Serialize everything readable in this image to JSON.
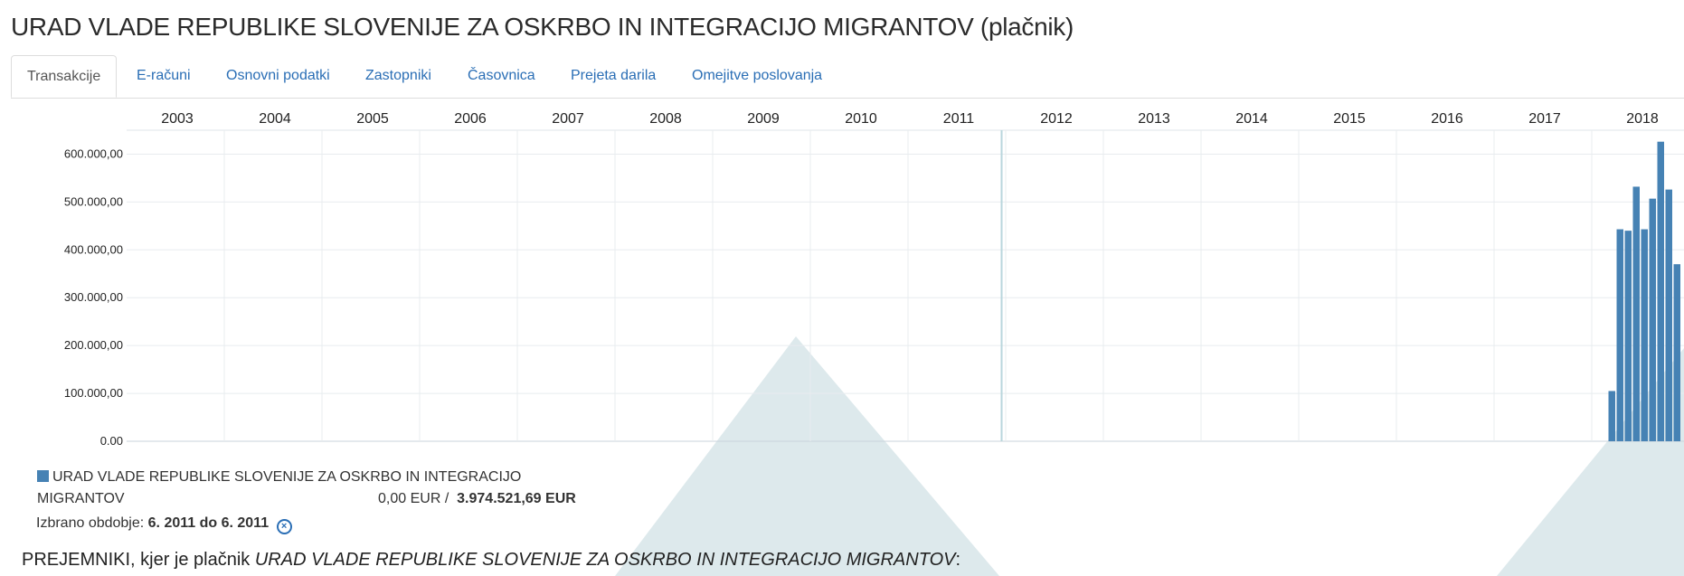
{
  "page": {
    "title": "URAD VLADE REPUBLIKE SLOVENIJE ZA OSKRBO IN INTEGRACIJO MIGRANTOV (plačnik)"
  },
  "tabs": [
    {
      "label": "Transakcije",
      "active": true
    },
    {
      "label": "E-računi"
    },
    {
      "label": "Osnovni podatki"
    },
    {
      "label": "Zastopniki"
    },
    {
      "label": "Časovnica"
    },
    {
      "label": "Prejeta darila"
    },
    {
      "label": "Omejitve poslovanja"
    }
  ],
  "chart_data": {
    "type": "bar",
    "x_labels": [
      "2003",
      "2004",
      "2005",
      "2006",
      "2007",
      "2008",
      "2009",
      "2010",
      "2011",
      "2012",
      "2013",
      "2014",
      "2015",
      "2016",
      "2017",
      "2018"
    ],
    "x_start": "2002-07",
    "y_ticks": [
      "0.00",
      "100.000,00",
      "200.000,00",
      "300.000,00",
      "400.000,00",
      "500.000,00",
      "600.000,00"
    ],
    "ylim": [
      0,
      650000
    ],
    "grid": true,
    "bar_color": "#4682b4",
    "series": [
      {
        "name": "URAD VLADE REPUBLIKE SLOVENIJE ZA OSKRBO IN INTEGRACIJO MIGRANTOV",
        "points": [
          {
            "month": "2017-09",
            "value": 105000
          },
          {
            "month": "2017-10",
            "value": 443000
          },
          {
            "month": "2017-11",
            "value": 440000
          },
          {
            "month": "2017-12",
            "value": 532000
          },
          {
            "month": "2018-01",
            "value": 443000
          },
          {
            "month": "2018-02",
            "value": 507000
          },
          {
            "month": "2018-03",
            "value": 626000
          },
          {
            "month": "2018-04",
            "value": 526000
          },
          {
            "month": "2018-05",
            "value": 370000
          }
        ]
      }
    ],
    "highlight_month": "2011-06"
  },
  "legend": {
    "line1": "URAD VLADE REPUBLIKE SLOVENIJE ZA OSKRBO IN INTEGRACIJO",
    "line2": "MIGRANTOV",
    "selected_amount": "0,00 EUR /",
    "total_amount": "3.974.521,69 EUR"
  },
  "selection": {
    "label": "Izbrano obdobje: ",
    "value": "6. 2011 do 6. 2011"
  },
  "recipients": {
    "prefix": "PREJEMNIKI, kjer je plačnik ",
    "payer": "URAD VLADE REPUBLIKE SLOVENIJE ZA OSKRBO IN INTEGRACIJO MIGRANTOV",
    "suffix": ":"
  }
}
